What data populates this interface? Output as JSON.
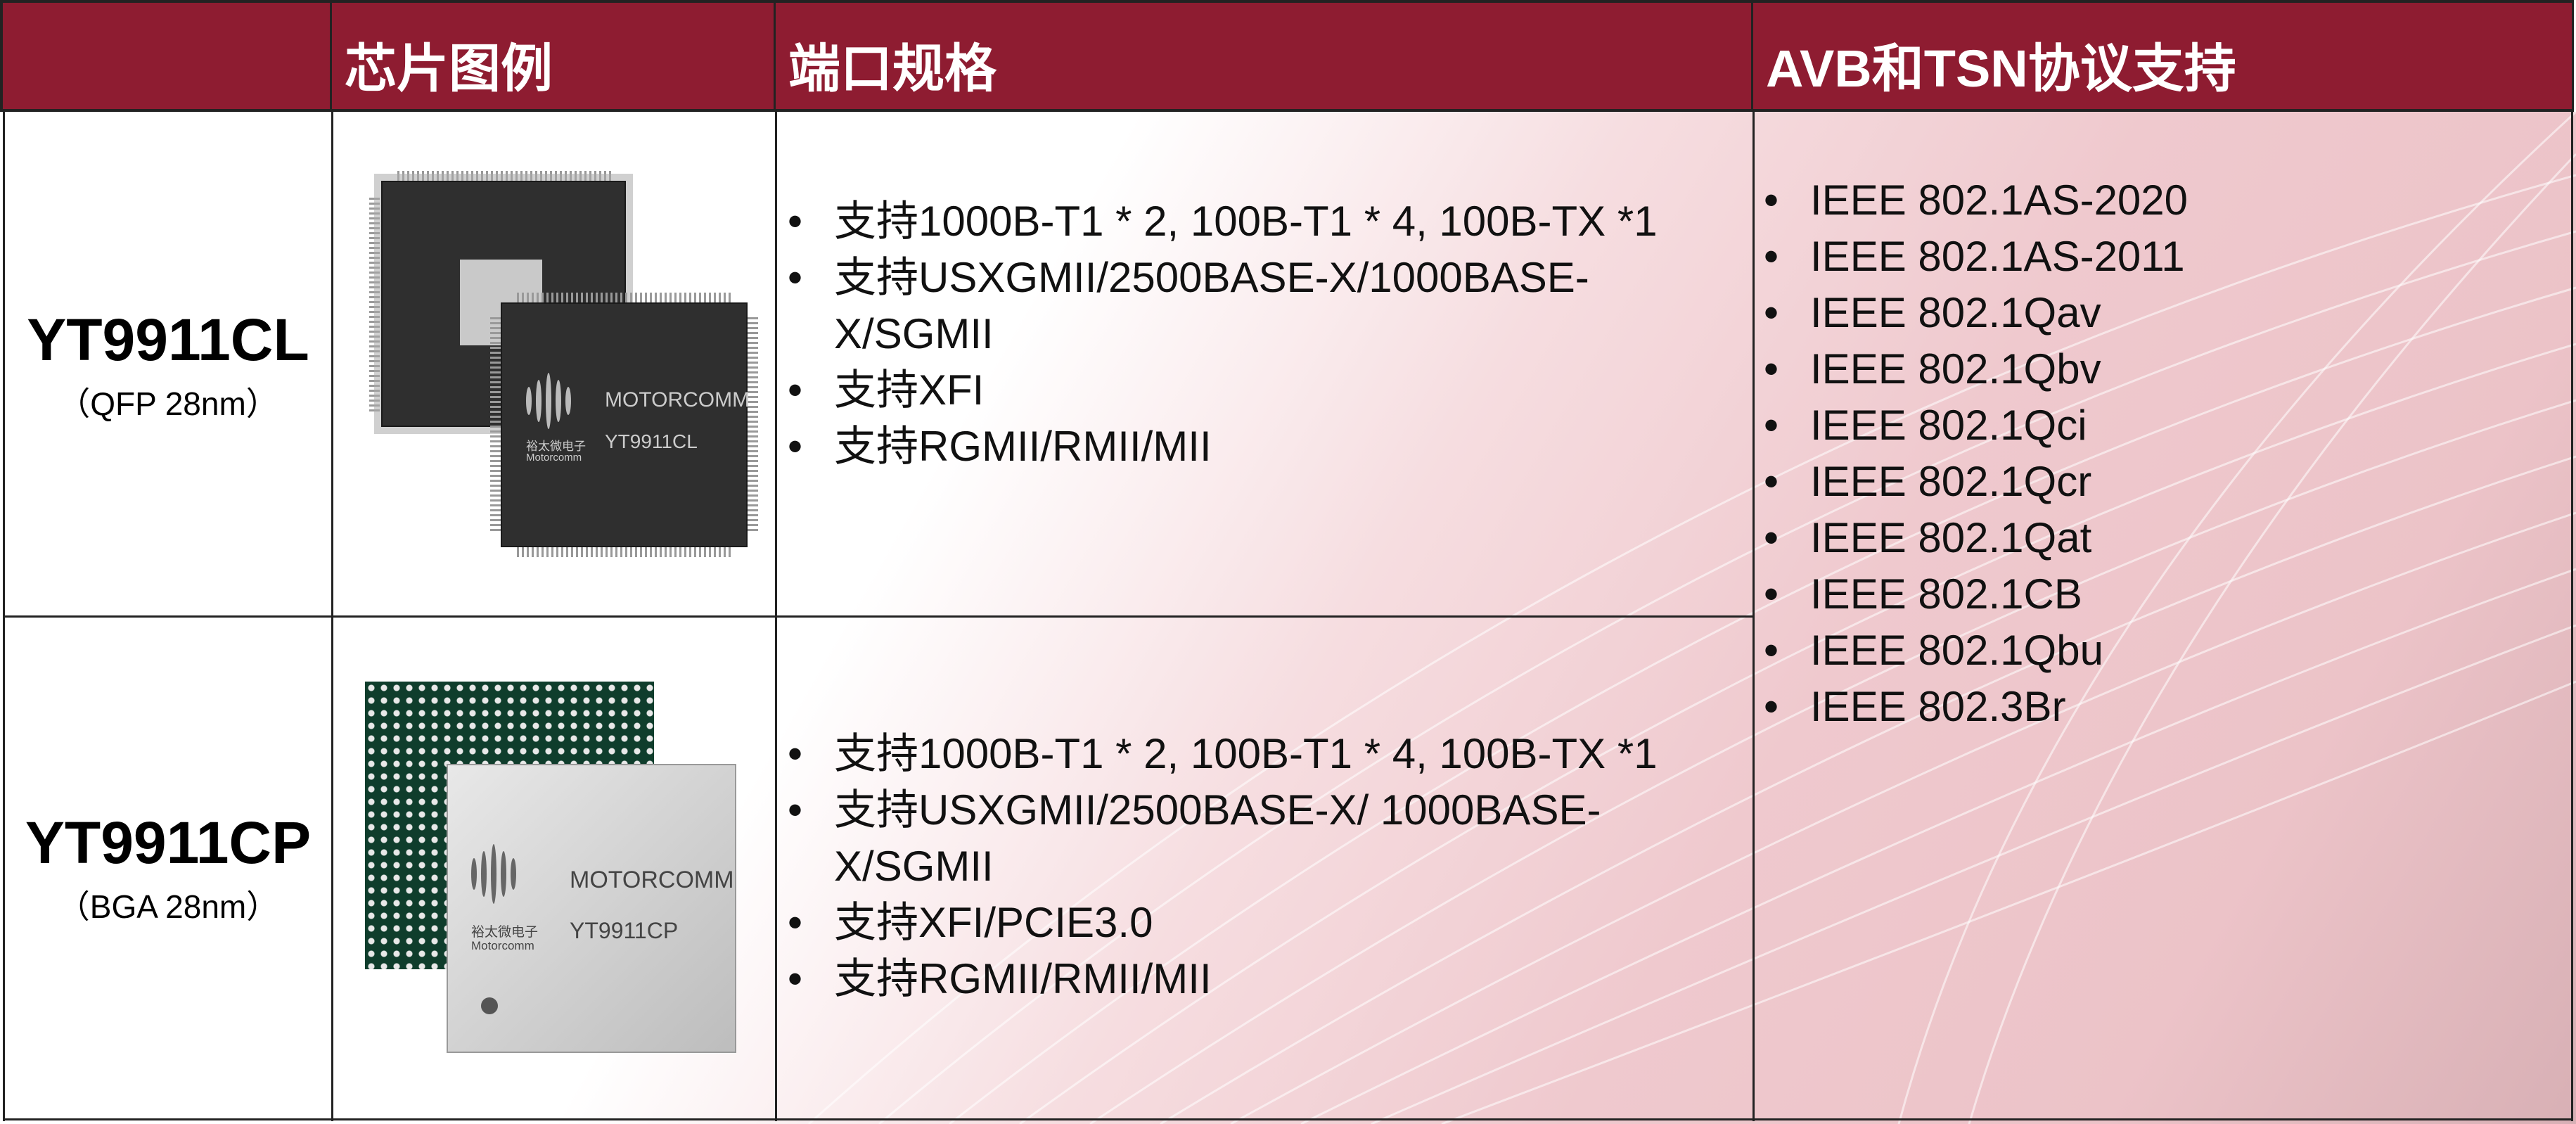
{
  "header": {
    "col1": "",
    "col2": "芯片图例",
    "col3": "端口规格",
    "col4": "AVB和TSN协议支持"
  },
  "colors": {
    "header_bg": "#8e1c31",
    "header_text": "#ffffff",
    "body_accent": "#ecc3c8"
  },
  "rows": [
    {
      "model": "YT9911CL",
      "package": "（QFP 28nm）",
      "chip_image": {
        "brand": "MOTORCOMM",
        "part": "YT9911CL",
        "cn": "裕太微电子",
        "en": "Motorcomm"
      },
      "specs": [
        "支持1000B-T1 * 2, 100B-T1 * 4, 100B-TX *1",
        "支持USXGMII/2500BASE-X/1000BASE-X/SGMII",
        "支持XFI",
        "支持RGMII/RMII/MII"
      ]
    },
    {
      "model": "YT9911CP",
      "package": "（BGA 28nm）",
      "chip_image": {
        "brand": "MOTORCOMM",
        "part": "YT9911CP",
        "cn": "裕太微电子",
        "en": "Motorcomm"
      },
      "specs": [
        "支持1000B-T1 * 2, 100B-T1 * 4, 100B-TX *1",
        "支持USXGMII/2500BASE-X/ 1000BASE-X/SGMII",
        "支持XFI/PCIE3.0",
        "支持RGMII/RMII/MII"
      ]
    }
  ],
  "protocols": [
    "IEEE 802.1AS-2020",
    "IEEE 802.1AS-2011",
    "IEEE 802.1Qav",
    "IEEE 802.1Qbv",
    "IEEE 802.1Qci",
    "IEEE 802.1Qcr",
    "IEEE 802.1Qat",
    "IEEE 802.1CB",
    "IEEE 802.1Qbu",
    "IEEE 802.3Br"
  ]
}
